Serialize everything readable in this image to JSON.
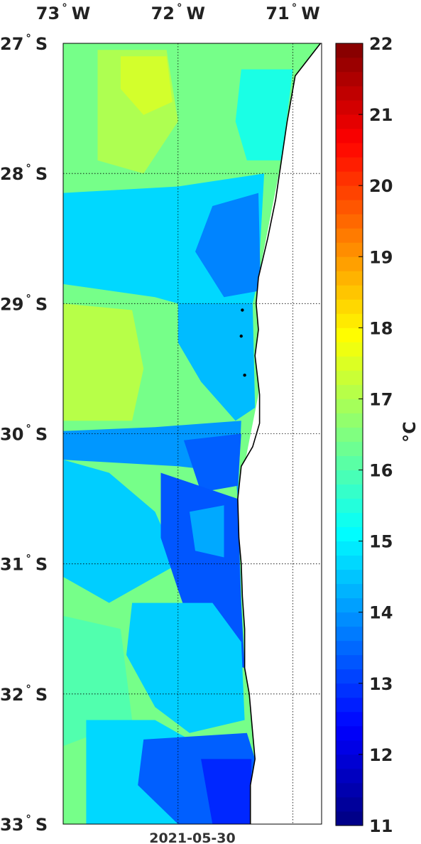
{
  "map": {
    "date": "2021-05-30",
    "lon_range": [
      -73.0,
      -70.75
    ],
    "lat_range": [
      -33.0,
      -27.0
    ],
    "lon_ticks": [
      {
        "value": -73,
        "label": "73",
        "hemi": "W"
      },
      {
        "value": -72,
        "label": "72",
        "hemi": "W"
      },
      {
        "value": -71,
        "label": "71",
        "hemi": "W"
      }
    ],
    "lat_ticks": [
      {
        "value": -27,
        "label": "27",
        "hemi": "S"
      },
      {
        "value": -28,
        "label": "28",
        "hemi": "S"
      },
      {
        "value": -29,
        "label": "29",
        "hemi": "S"
      },
      {
        "value": -30,
        "label": "30",
        "hemi": "S"
      },
      {
        "value": -31,
        "label": "31",
        "hemi": "S"
      },
      {
        "value": -32,
        "label": "32",
        "hemi": "S"
      },
      {
        "value": -33,
        "label": "33",
        "hemi": "S"
      }
    ],
    "degree_symbol": "°",
    "grid": "dotted",
    "land_color": "#ffffff",
    "coast_color": "#000000",
    "coastline": [
      [
        -70.76,
        -27.0
      ],
      [
        -70.98,
        -27.25
      ],
      [
        -71.05,
        -27.6
      ],
      [
        -71.1,
        -27.9
      ],
      [
        -71.15,
        -28.2
      ],
      [
        -71.22,
        -28.5
      ],
      [
        -71.3,
        -28.8
      ],
      [
        -71.32,
        -29.0
      ],
      [
        -71.3,
        -29.2
      ],
      [
        -71.33,
        -29.4
      ],
      [
        -71.29,
        -29.7
      ],
      [
        -71.29,
        -29.92
      ],
      [
        -71.35,
        -30.1
      ],
      [
        -71.45,
        -30.25
      ],
      [
        -71.48,
        -30.5
      ],
      [
        -71.47,
        -30.8
      ],
      [
        -71.45,
        -31.0
      ],
      [
        -71.44,
        -31.25
      ],
      [
        -71.42,
        -31.5
      ],
      [
        -71.42,
        -31.8
      ],
      [
        -71.38,
        -32.0
      ],
      [
        -71.35,
        -32.3
      ],
      [
        -71.33,
        -32.5
      ],
      [
        -71.37,
        -32.7
      ],
      [
        -71.37,
        -33.0
      ]
    ],
    "sst_regions": [
      {
        "temp": 16.4,
        "points": [
          [
            -73.0,
            -27.0
          ],
          [
            -70.76,
            -27.0
          ],
          [
            -71.1,
            -27.9
          ],
          [
            -71.3,
            -28.8
          ],
          [
            -71.3,
            -29.7
          ],
          [
            -71.48,
            -30.5
          ],
          [
            -71.42,
            -31.5
          ],
          [
            -71.33,
            -32.5
          ],
          [
            -71.37,
            -33.0
          ],
          [
            -73.0,
            -33.0
          ]
        ]
      },
      {
        "temp": 17.0,
        "points": [
          [
            -72.7,
            -27.05
          ],
          [
            -72.1,
            -27.05
          ],
          [
            -72.0,
            -27.6
          ],
          [
            -72.3,
            -28.0
          ],
          [
            -72.7,
            -27.9
          ]
        ]
      },
      {
        "temp": 17.4,
        "points": [
          [
            -72.5,
            -27.1
          ],
          [
            -72.1,
            -27.1
          ],
          [
            -72.05,
            -27.45
          ],
          [
            -72.3,
            -27.55
          ],
          [
            -72.5,
            -27.35
          ]
        ]
      },
      {
        "temp": 15.4,
        "points": [
          [
            -71.45,
            -27.2
          ],
          [
            -71.0,
            -27.2
          ],
          [
            -71.1,
            -27.9
          ],
          [
            -71.4,
            -27.9
          ],
          [
            -71.5,
            -27.6
          ]
        ]
      },
      {
        "temp": 14.7,
        "points": [
          [
            -73.0,
            -28.15
          ],
          [
            -72.0,
            -28.1
          ],
          [
            -71.25,
            -28.0
          ],
          [
            -71.3,
            -28.8
          ],
          [
            -71.35,
            -29.0
          ],
          [
            -71.8,
            -29.05
          ],
          [
            -72.2,
            -28.95
          ],
          [
            -73.0,
            -28.85
          ]
        ]
      },
      {
        "temp": 13.8,
        "points": [
          [
            -71.7,
            -28.25
          ],
          [
            -71.3,
            -28.15
          ],
          [
            -71.28,
            -28.9
          ],
          [
            -71.6,
            -28.95
          ],
          [
            -71.85,
            -28.6
          ]
        ]
      },
      {
        "temp": 14.4,
        "points": [
          [
            -72.0,
            -29.0
          ],
          [
            -71.35,
            -29.0
          ],
          [
            -71.33,
            -29.8
          ],
          [
            -71.5,
            -29.9
          ],
          [
            -71.8,
            -29.6
          ],
          [
            -72.0,
            -29.3
          ]
        ]
      },
      {
        "temp": 17.1,
        "points": [
          [
            -73.0,
            -29.0
          ],
          [
            -72.4,
            -29.05
          ],
          [
            -72.3,
            -29.5
          ],
          [
            -72.4,
            -29.9
          ],
          [
            -73.0,
            -29.9
          ]
        ]
      },
      {
        "temp": 14.0,
        "points": [
          [
            -73.0,
            -29.98
          ],
          [
            -72.2,
            -29.95
          ],
          [
            -71.45,
            -29.9
          ],
          [
            -71.48,
            -30.5
          ],
          [
            -71.5,
            -30.3
          ],
          [
            -72.0,
            -30.25
          ],
          [
            -73.0,
            -30.2
          ]
        ]
      },
      {
        "temp": 13.4,
        "points": [
          [
            -71.95,
            -30.05
          ],
          [
            -71.45,
            -30.0
          ],
          [
            -71.48,
            -30.4
          ],
          [
            -71.8,
            -30.45
          ]
        ]
      },
      {
        "temp": 14.6,
        "points": [
          [
            -73.0,
            -30.2
          ],
          [
            -72.6,
            -30.3
          ],
          [
            -72.2,
            -30.6
          ],
          [
            -72.0,
            -31.0
          ],
          [
            -72.6,
            -31.3
          ],
          [
            -73.0,
            -31.1
          ]
        ]
      },
      {
        "temp": 13.3,
        "points": [
          [
            -72.15,
            -30.3
          ],
          [
            -71.48,
            -30.5
          ],
          [
            -71.45,
            -31.3
          ],
          [
            -71.42,
            -31.8
          ],
          [
            -71.8,
            -31.7
          ],
          [
            -72.0,
            -31.2
          ],
          [
            -72.15,
            -30.8
          ]
        ]
      },
      {
        "temp": 14.2,
        "points": [
          [
            -71.9,
            -30.6
          ],
          [
            -71.6,
            -30.55
          ],
          [
            -71.6,
            -30.95
          ],
          [
            -71.85,
            -30.9
          ]
        ]
      },
      {
        "temp": 14.6,
        "points": [
          [
            -72.4,
            -31.3
          ],
          [
            -71.7,
            -31.3
          ],
          [
            -71.45,
            -31.6
          ],
          [
            -71.42,
            -32.2
          ],
          [
            -71.9,
            -32.3
          ],
          [
            -72.2,
            -32.1
          ],
          [
            -72.45,
            -31.7
          ]
        ]
      },
      {
        "temp": 16.0,
        "points": [
          [
            -73.0,
            -31.4
          ],
          [
            -72.5,
            -31.5
          ],
          [
            -72.4,
            -32.2
          ],
          [
            -73.0,
            -32.4
          ]
        ]
      },
      {
        "temp": 14.7,
        "points": [
          [
            -72.8,
            -32.2
          ],
          [
            -72.2,
            -32.2
          ],
          [
            -71.8,
            -32.4
          ],
          [
            -71.5,
            -32.35
          ],
          [
            -71.37,
            -33.0
          ],
          [
            -72.8,
            -33.0
          ]
        ]
      },
      {
        "temp": 13.4,
        "points": [
          [
            -72.3,
            -32.35
          ],
          [
            -71.4,
            -32.3
          ],
          [
            -71.33,
            -32.5
          ],
          [
            -71.37,
            -33.0
          ],
          [
            -72.0,
            -33.0
          ],
          [
            -72.35,
            -32.7
          ]
        ]
      },
      {
        "temp": 12.8,
        "points": [
          [
            -71.8,
            -32.5
          ],
          [
            -71.36,
            -32.5
          ],
          [
            -71.37,
            -33.0
          ],
          [
            -71.7,
            -33.0
          ]
        ]
      }
    ],
    "islets": [
      [
        -71.44,
        -29.05
      ],
      [
        -71.45,
        -29.25
      ],
      [
        -71.42,
        -29.55
      ]
    ]
  },
  "colorbar": {
    "min": 11,
    "max": 22,
    "labels": [
      "11",
      "12",
      "13",
      "14",
      "15",
      "16",
      "17",
      "18",
      "19",
      "20",
      "21",
      "22"
    ],
    "unit": "°C",
    "colormap": "jet"
  }
}
